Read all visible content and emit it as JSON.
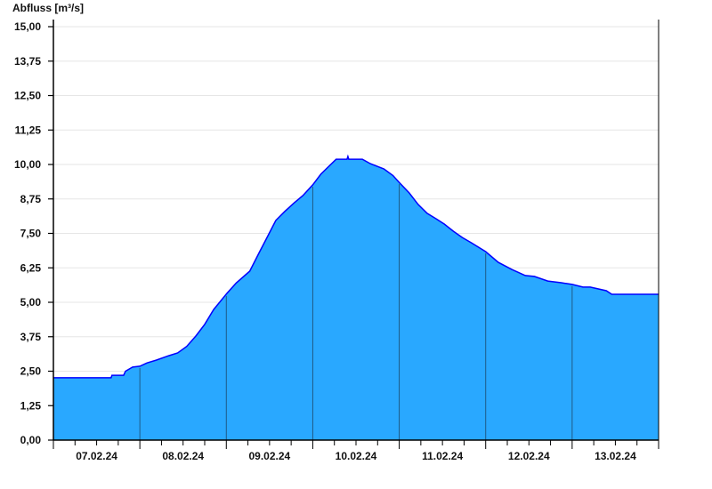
{
  "chart_data": {
    "type": "area",
    "title": "",
    "ylabel": "Abfluss [m³/s]",
    "xlabel": "",
    "ylim": [
      0,
      15
    ],
    "xlim": [
      "07.02.24 00:00",
      "14.02.24 00:00"
    ],
    "yticks": [
      "0,00",
      "1,25",
      "2,50",
      "3,75",
      "5,00",
      "6,25",
      "7,50",
      "8,75",
      "10,00",
      "11,25",
      "12,50",
      "13,75",
      "15,00"
    ],
    "xtick_labels": [
      "07.02.24",
      "08.02.24",
      "09.02.24",
      "10.02.24",
      "11.02.24",
      "12.02.24",
      "13.02.24"
    ],
    "grid": true,
    "colors": {
      "fill": "#29a8ff",
      "line": "#0000ff",
      "day_lines": "#1f5a86",
      "grid": "#e6e6e6"
    },
    "series": [
      {
        "points": [
          [
            "07.02.24 00:00",
            2.26
          ],
          [
            "07.02.24 16:00",
            2.26
          ],
          [
            "07.02.24 16:15",
            2.35
          ],
          [
            "07.02.24 19:30",
            2.35
          ],
          [
            "07.02.24 20:00",
            2.5
          ],
          [
            "07.02.24 22:00",
            2.65
          ],
          [
            "08.02.24 00:00",
            2.68
          ],
          [
            "08.02.24 02:00",
            2.8
          ],
          [
            "08.02.24 04:30",
            2.9
          ],
          [
            "08.02.24 08:00",
            3.06
          ],
          [
            "08.02.24 10:30",
            3.16
          ],
          [
            "08.02.24 13:00",
            3.4
          ],
          [
            "08.02.24 15:30",
            3.77
          ],
          [
            "08.02.24 18:00",
            4.2
          ],
          [
            "08.02.24 20:30",
            4.74
          ],
          [
            "09.02.24 00:00",
            5.3
          ],
          [
            "09.02.24 02:45",
            5.7
          ],
          [
            "09.02.24 06:30",
            6.13
          ],
          [
            "09.02.24 09:00",
            6.77
          ],
          [
            "09.02.24 11:30",
            7.4
          ],
          [
            "09.02.24 13:45",
            7.97
          ],
          [
            "09.02.24 16:15",
            8.3
          ],
          [
            "09.02.24 18:45",
            8.6
          ],
          [
            "09.02.24 21:15",
            8.87
          ],
          [
            "10.02.24 00:00",
            9.26
          ],
          [
            "10.02.24 02:15",
            9.65
          ],
          [
            "10.02.24 04:45",
            9.97
          ],
          [
            "10.02.24 06:30",
            10.19
          ],
          [
            "10.02.24 09:30",
            10.19
          ],
          [
            "10.02.24 09:45",
            10.29
          ],
          [
            "10.02.24 10:00",
            10.19
          ],
          [
            "10.02.24 13:45",
            10.19
          ],
          [
            "10.02.24 16:00",
            10.03
          ],
          [
            "10.02.24 19:45",
            9.84
          ],
          [
            "10.02.24 22:15",
            9.6
          ],
          [
            "11.02.24 00:00",
            9.35
          ],
          [
            "11.02.24 02:45",
            8.97
          ],
          [
            "11.02.24 05:15",
            8.55
          ],
          [
            "11.02.24 07:45",
            8.23
          ],
          [
            "11.02.24 10:15",
            8.03
          ],
          [
            "11.02.24 12:30",
            7.84
          ],
          [
            "11.02.24 15:00",
            7.58
          ],
          [
            "11.02.24 17:30",
            7.35
          ],
          [
            "11.02.24 20:00",
            7.16
          ],
          [
            "12.02.24 00:00",
            6.84
          ],
          [
            "12.02.24 03:30",
            6.45
          ],
          [
            "12.02.24 07:15",
            6.19
          ],
          [
            "12.02.24 11:00",
            5.97
          ],
          [
            "12.02.24 13:30",
            5.94
          ],
          [
            "12.02.24 17:15",
            5.77
          ],
          [
            "12.02.24 21:00",
            5.71
          ],
          [
            "13.02.24 00:00",
            5.65
          ],
          [
            "13.02.24 03:00",
            5.55
          ],
          [
            "13.02.24 05:00",
            5.55
          ],
          [
            "13.02.24 09:30",
            5.42
          ],
          [
            "13.02.24 11:00",
            5.29
          ],
          [
            "14.02.24 00:00",
            5.29
          ]
        ]
      }
    ]
  }
}
